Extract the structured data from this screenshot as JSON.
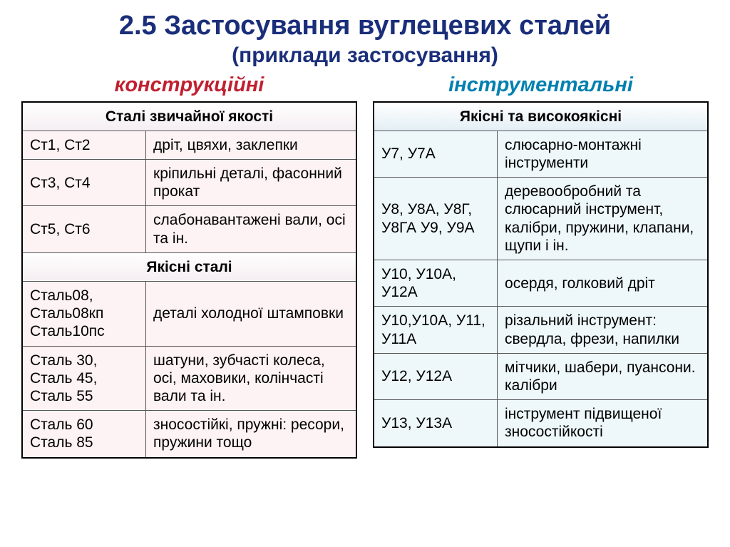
{
  "title": "2.5 Застосування вуглецевих сталей",
  "subtitle": "(приклади застосування)",
  "left": {
    "heading": "конструкційні",
    "section1_header": "Сталі звичайної якості",
    "section1_rows": [
      {
        "grade": "Ст1, Ст2",
        "use": "дріт, цвяхи, заклепки"
      },
      {
        "grade": "Ст3, Ст4",
        "use": "кріпильні деталі, фасонний прокат"
      },
      {
        "grade": "Ст5, Ст6",
        "use": "слабонавантажені вали, осі та ін."
      }
    ],
    "section2_header": "Якісні сталі",
    "section2_rows": [
      {
        "grade": "Сталь08, Сталь08кп Сталь10пс",
        "use": "деталі холодної штамповки"
      },
      {
        "grade": "Сталь 30, Сталь 45, Сталь 55",
        "use": "шатуни, зубчасті колеса, осі, маховики, колінчасті вали та ін."
      },
      {
        "grade": "Сталь 60 Сталь 85",
        "use": "зносостійкі, пружні: ресори, пружини тощо"
      }
    ]
  },
  "right": {
    "heading": "інструментальні",
    "section1_header": "Якісні та високоякісні",
    "section1_rows": [
      {
        "grade": "У7, У7А",
        "use": "слюсарно-монтажні інструменти"
      },
      {
        "grade": "У8, У8А, У8Г, У8ГА У9, У9А",
        "use": "деревообробний та слюсарний інструмент, калібри, пружини, клапани, щупи і ін."
      },
      {
        "grade": "У10, У10А, У12А",
        "use": "осердя, голковий дріт"
      },
      {
        "grade": "У10,У10А, У11, У11А",
        "use": "різальний інструмент: свердла, фрези, напилки"
      },
      {
        "grade": "У12, У12А",
        "use": "мітчики, шабери, пуансони. калібри"
      },
      {
        "grade": "У13, У13А",
        "use": "інструмент підвищеної зносостійкості"
      }
    ]
  },
  "style": {
    "title_color": "#1a2e7a",
    "left_heading_color": "#c02030",
    "right_heading_color": "#0080b0",
    "pink_bg": "#fdf2f4",
    "blue_bg": "#eef8fb",
    "title_fontsize": 38,
    "subtitle_fontsize": 30,
    "heading_fontsize": 29,
    "cell_fontsize": 21
  }
}
